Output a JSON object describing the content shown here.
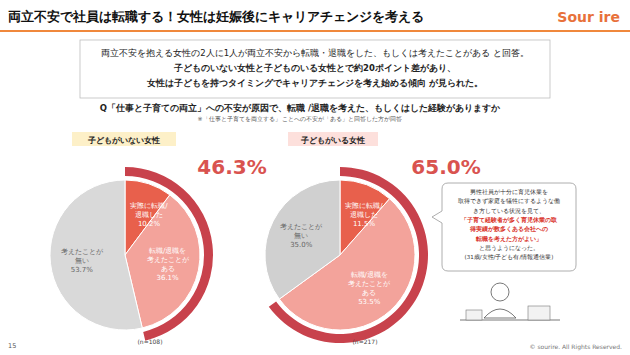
{
  "title": "両立不安で社員は転職する！女性は妊娠後にキャリアチェンジを考える",
  "logo": "Sour ire",
  "summary": [
    "両立不安を抱える女性の2人に1人が両立不安から転職・退職をした、もしくは考えたことがある と回答。",
    "子どものいない女性と子どものいる女性とで約20ポイント差があり、",
    "女性は子どもを持つタイミングでキャリアチェンジを考え始める傾向 が見られた。"
  ],
  "question": "Q「仕事と子育ての両立」への不安が原因で、転職 /退職を考えた、もしくはした経験がありますか",
  "question_note": "※「仕事と子育てを両立する」 ことへの不安が「ある」と回答した方が回答",
  "chart_data": [
    {
      "type": "pie",
      "title": "子どもがいない女性",
      "categories": [
        "実際に転職/退職した",
        "転職/退職を考えたことがある",
        "考えたことが無い"
      ],
      "values": [
        10.2,
        36.1,
        53.7
      ],
      "value_labels": [
        "10.2%",
        "36.1%",
        "53.7%"
      ],
      "colors": [
        "#e8604c",
        "#f3a39b",
        "#d9d9d9"
      ],
      "data_labels": true,
      "highlight": {
        "value": 46.3,
        "label": "46.3%"
      },
      "n": {
        "value": 108,
        "label": "(n=108)"
      }
    },
    {
      "type": "pie",
      "title": "子どもがいる女性",
      "categories": [
        "実際に転職/退職した",
        "転職/退職を考えたことがある",
        "考えたことが無い"
      ],
      "values": [
        11.5,
        53.5,
        35.0
      ],
      "value_labels": [
        "11.5%",
        "53.5%",
        "35.0%"
      ],
      "colors": [
        "#e8604c",
        "#f3a39b",
        "#d0d0d0"
      ],
      "data_labels": true,
      "highlight": {
        "value": 65.0,
        "label": "65.0%"
      },
      "n": {
        "value": 217,
        "label": "(n=217)"
      }
    }
  ],
  "callout": {
    "intro": [
      "男性社員が十分に育児休業を",
      "取得できず家庭を犠牲にするような働",
      "き方している状況を見て、"
    ],
    "quote": [
      "「子育て経験者が多く育児休業の取",
      "得実績が数多くある会社への",
      "転職を考えた方がよい」"
    ],
    "outro": "と思うようになった。",
    "attribution": "(31歳/女性/子ども有/情報通信業)"
  },
  "page": "15",
  "copyright": "© sourire. All Rights Reserved."
}
